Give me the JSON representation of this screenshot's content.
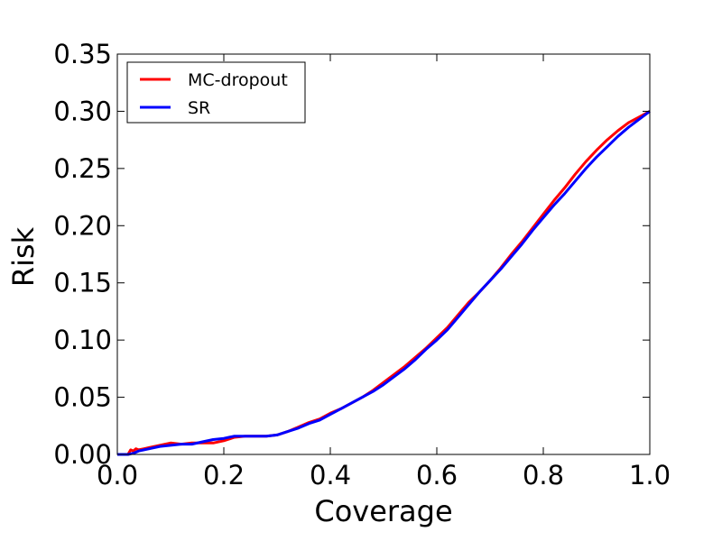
{
  "chart_data": {
    "type": "line",
    "title": "",
    "xlabel": "Coverage",
    "ylabel": "Risk",
    "xlim": [
      0.0,
      1.0
    ],
    "ylim": [
      0.0,
      0.35
    ],
    "xticks": [
      "0.0",
      "0.2",
      "0.4",
      "0.6",
      "0.8",
      "1.0"
    ],
    "yticks": [
      "0.00",
      "0.05",
      "0.10",
      "0.15",
      "0.20",
      "0.25",
      "0.30",
      "0.35"
    ],
    "grid": false,
    "legend_position": "top-left",
    "series": [
      {
        "name": "MC-dropout",
        "color": "#ff0000",
        "x": [
          0.0,
          0.02,
          0.025,
          0.03,
          0.035,
          0.04,
          0.05,
          0.06,
          0.08,
          0.1,
          0.12,
          0.14,
          0.16,
          0.18,
          0.2,
          0.22,
          0.24,
          0.26,
          0.28,
          0.3,
          0.32,
          0.34,
          0.36,
          0.38,
          0.4,
          0.42,
          0.44,
          0.46,
          0.48,
          0.5,
          0.52,
          0.54,
          0.56,
          0.58,
          0.6,
          0.62,
          0.64,
          0.66,
          0.68,
          0.7,
          0.72,
          0.74,
          0.76,
          0.78,
          0.8,
          0.82,
          0.84,
          0.86,
          0.88,
          0.9,
          0.92,
          0.94,
          0.96,
          0.98,
          1.0
        ],
        "y": [
          0.0,
          0.0,
          0.004,
          0.003,
          0.005,
          0.004,
          0.005,
          0.006,
          0.008,
          0.01,
          0.009,
          0.01,
          0.01,
          0.01,
          0.012,
          0.015,
          0.016,
          0.016,
          0.016,
          0.017,
          0.02,
          0.024,
          0.028,
          0.031,
          0.036,
          0.04,
          0.045,
          0.05,
          0.056,
          0.063,
          0.07,
          0.077,
          0.085,
          0.093,
          0.102,
          0.111,
          0.122,
          0.133,
          0.142,
          0.152,
          0.163,
          0.175,
          0.186,
          0.198,
          0.21,
          0.222,
          0.233,
          0.245,
          0.256,
          0.266,
          0.275,
          0.283,
          0.29,
          0.295,
          0.3
        ]
      },
      {
        "name": "SR",
        "color": "#0000ff",
        "x": [
          0.0,
          0.02,
          0.03,
          0.04,
          0.05,
          0.06,
          0.08,
          0.1,
          0.12,
          0.14,
          0.16,
          0.18,
          0.2,
          0.22,
          0.24,
          0.26,
          0.28,
          0.3,
          0.32,
          0.34,
          0.36,
          0.38,
          0.4,
          0.42,
          0.44,
          0.46,
          0.48,
          0.5,
          0.52,
          0.54,
          0.56,
          0.58,
          0.6,
          0.62,
          0.64,
          0.66,
          0.68,
          0.7,
          0.72,
          0.74,
          0.76,
          0.78,
          0.8,
          0.82,
          0.84,
          0.86,
          0.88,
          0.9,
          0.92,
          0.94,
          0.96,
          0.98,
          1.0
        ],
        "y": [
          0.0,
          0.0,
          0.001,
          0.003,
          0.004,
          0.005,
          0.007,
          0.008,
          0.009,
          0.009,
          0.011,
          0.013,
          0.014,
          0.016,
          0.016,
          0.016,
          0.016,
          0.017,
          0.02,
          0.023,
          0.027,
          0.03,
          0.035,
          0.04,
          0.045,
          0.05,
          0.055,
          0.061,
          0.068,
          0.075,
          0.083,
          0.092,
          0.1,
          0.109,
          0.12,
          0.131,
          0.142,
          0.152,
          0.162,
          0.173,
          0.184,
          0.196,
          0.207,
          0.218,
          0.228,
          0.239,
          0.25,
          0.26,
          0.269,
          0.278,
          0.286,
          0.293,
          0.3
        ]
      }
    ]
  }
}
